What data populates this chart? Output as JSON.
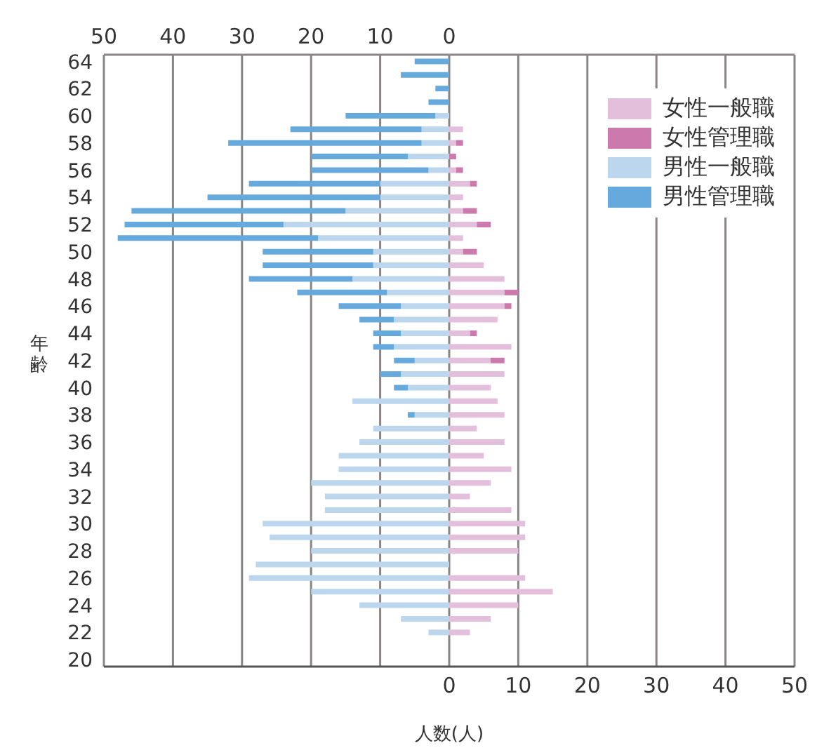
{
  "chart_data": {
    "type": "bar",
    "orientation": "horizontal",
    "stacked": true,
    "xlabel": "人数(人)",
    "ylabel": "年齢",
    "categories": [
      "64",
      null,
      "62",
      null,
      "60",
      null,
      "58",
      null,
      "56",
      null,
      "54",
      null,
      "52",
      null,
      "50",
      null,
      "48",
      null,
      "46",
      null,
      "44",
      null,
      "42",
      null,
      "40",
      null,
      "38",
      null,
      "36",
      null,
      "34",
      null,
      "32",
      null,
      "30",
      null,
      "28",
      null,
      "26",
      null,
      "24",
      null,
      "22",
      null,
      "20"
    ],
    "series": [
      {
        "name": "女性一般職",
        "color": "#e4bfdb",
        "values": [
          0,
          0,
          0,
          0,
          0,
          2,
          1,
          0,
          1,
          3,
          2,
          2,
          4,
          2,
          2,
          5,
          8,
          8,
          8,
          7,
          3,
          9,
          6,
          8,
          6,
          7,
          8,
          4,
          8,
          5,
          9,
          6,
          3,
          9,
          11,
          11,
          10,
          0,
          11,
          15,
          10,
          6,
          3,
          0,
          0
        ]
      },
      {
        "name": "女性管理職",
        "color": "#cc7aae",
        "values": [
          0,
          0,
          0,
          0,
          0,
          0,
          1,
          1,
          1,
          1,
          0,
          2,
          2,
          0,
          2,
          0,
          0,
          2,
          1,
          0,
          1,
          0,
          2,
          0,
          0,
          0,
          0,
          0,
          0,
          0,
          0,
          0,
          0,
          0,
          0,
          0,
          0,
          0,
          0,
          0,
          0,
          0,
          0,
          0,
          0
        ]
      },
      {
        "name": "男性一般職",
        "color": "#bcd6ee",
        "values": [
          0,
          0,
          0,
          0,
          -2,
          -4,
          -4,
          -6,
          -3,
          -10,
          -10,
          -15,
          -24,
          -19,
          -11,
          -11,
          -14,
          -9,
          -7,
          -8,
          -7,
          -8,
          -5,
          -7,
          -6,
          -14,
          -5,
          -11,
          -13,
          -16,
          -16,
          -20,
          -18,
          -18,
          -27,
          -26,
          -20,
          -28,
          -29,
          -20,
          -13,
          -7,
          -3,
          0,
          0
        ]
      },
      {
        "name": "男性管理職",
        "color": "#66a9dc",
        "values": [
          -5,
          -7,
          -2,
          -3,
          -13,
          -19,
          -28,
          -14,
          -17,
          -19,
          -25,
          -31,
          -23,
          -29,
          -16,
          -16,
          -15,
          -13,
          -9,
          -5,
          -4,
          -3,
          -3,
          -3,
          -2,
          0,
          -1,
          0,
          0,
          0,
          0,
          0,
          0,
          0,
          0,
          0,
          0,
          0,
          0,
          0,
          0,
          0,
          0,
          0,
          0
        ]
      }
    ],
    "xlim": [
      -50,
      50
    ],
    "xticks": [
      0,
      10,
      20,
      30,
      40,
      50
    ],
    "x2lim": [
      -50,
      50
    ],
    "x2ticks": [
      {
        "value": -50,
        "label": "50"
      },
      {
        "value": -40,
        "label": "40"
      },
      {
        "value": -30,
        "label": "30"
      },
      {
        "value": -20,
        "label": "20"
      },
      {
        "value": -10,
        "label": "10"
      },
      0
    ],
    "grid": "x",
    "legend": "top right"
  }
}
